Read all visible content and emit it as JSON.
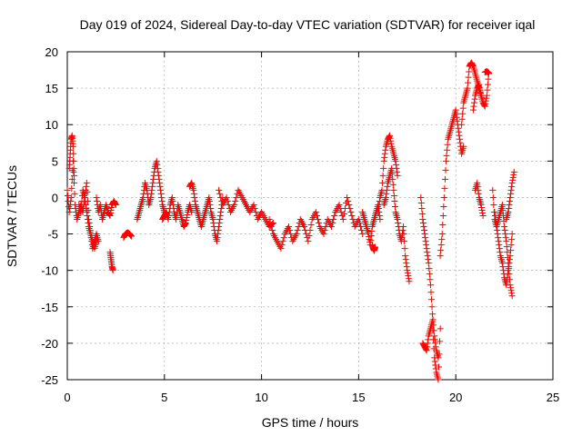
{
  "chart_data": {
    "type": "scatter",
    "title": "Day 019 of 2024, Sidereal Day-to-day VTEC variation (SDTVAR) for receiver iqal",
    "xlabel": "GPS time / hours",
    "ylabel": "SDTVAR / TECUs",
    "xlim": [
      0,
      25
    ],
    "ylim": [
      -25,
      20
    ],
    "xticks": [
      0,
      5,
      10,
      15,
      20,
      25
    ],
    "yticks": [
      -25,
      -20,
      -15,
      -10,
      -5,
      0,
      5,
      10,
      15,
      20
    ],
    "grid": true,
    "marker": "+",
    "color": "#ff0000",
    "series": [
      {
        "name": "SDTVAR",
        "segments": [
          {
            "x": [
              0.0,
              0.1,
              0.2,
              0.3,
              0.4,
              0.5,
              0.6,
              0.7,
              0.8,
              0.9,
              1.0,
              1.1,
              1.2,
              1.3,
              1.4,
              1.5
            ],
            "y": [
              1,
              -2,
              0,
              5,
              -1,
              -3,
              -2,
              -1,
              -2,
              0,
              -2,
              -4,
              -5,
              -6,
              -7,
              -6
            ]
          },
          {
            "x": [
              0.1,
              0.15,
              0.2,
              0.25,
              0.3,
              0.35
            ],
            "y": [
              4,
              6,
              8,
              8.5,
              7,
              3
            ]
          },
          {
            "x": [
              0.6,
              0.7,
              0.8,
              0.9,
              1.0,
              1.1,
              1.2,
              1.3,
              1.4,
              1.5,
              1.6
            ],
            "y": [
              -1,
              -2,
              1,
              0,
              2,
              -3,
              -5,
              -7,
              -6,
              -5,
              -6
            ]
          },
          {
            "x": [
              1.5,
              1.6,
              1.7,
              1.8,
              1.9,
              2.0,
              2.1,
              2.2,
              2.3,
              2.4,
              2.5
            ],
            "y": [
              0,
              -2,
              -1,
              -3,
              -2,
              -1,
              -2,
              -2.5,
              -1,
              -0.5,
              -1
            ]
          },
          {
            "x": [
              2.2,
              2.25,
              2.3,
              2.35
            ],
            "y": [
              -7.5,
              -8.5,
              -9.5,
              -10
            ]
          },
          {
            "x": [
              2.9,
              3.0,
              3.1,
              3.2,
              3.3
            ],
            "y": [
              -5.5,
              -5,
              -4.8,
              -5,
              -5.3
            ]
          },
          {
            "x": [
              3.6,
              3.7,
              3.8,
              3.9,
              4.0,
              4.1,
              4.2,
              4.3,
              4.4,
              4.5,
              4.6,
              4.7,
              4.8,
              4.9,
              5.0
            ],
            "y": [
              -3,
              -2,
              -1,
              0,
              2,
              1,
              -1,
              0,
              2,
              4,
              5,
              3,
              1,
              -1,
              -2
            ]
          },
          {
            "x": [
              4.9,
              5.0,
              5.1,
              5.2,
              5.3,
              5.4,
              5.5,
              5.6,
              5.7,
              5.8,
              5.9,
              6.0,
              6.1,
              6.2,
              6.3,
              6.4
            ],
            "y": [
              -3,
              -2.5,
              -2,
              -3,
              -1,
              0,
              -2,
              -3,
              -1,
              -2,
              -3,
              -4,
              -3.5,
              -2,
              -1,
              -2
            ]
          },
          {
            "x": [
              6.3,
              6.4,
              6.5,
              6.6,
              6.7,
              6.8,
              6.9,
              7.0,
              7.1,
              7.2,
              7.3,
              7.4,
              7.5,
              7.6,
              7.7,
              7.8,
              7.9,
              8.0
            ],
            "y": [
              1.5,
              2,
              1,
              -1,
              -2,
              -3,
              -4,
              -3,
              -2,
              -1,
              0,
              -2,
              -3,
              -5,
              -6,
              -4,
              -2,
              0
            ]
          },
          {
            "x": [
              7.8,
              8.0,
              8.2,
              8.4,
              8.6,
              8.8,
              9.0,
              9.2,
              9.4,
              9.6,
              9.8,
              10.0,
              10.2,
              10.4,
              10.6
            ],
            "y": [
              1,
              -1,
              0,
              -2,
              -1,
              1,
              0,
              -1,
              -2,
              -1,
              -3,
              -2,
              -3,
              -4,
              -3.5
            ]
          },
          {
            "x": [
              10.4,
              10.6,
              10.8,
              11.0,
              11.2,
              11.4,
              11.6,
              11.8,
              12.0,
              12.2,
              12.4,
              12.6,
              12.8,
              13.0,
              13.2,
              13.4,
              13.6,
              13.8,
              14.0,
              14.2,
              14.4,
              14.6,
              14.8,
              15.0,
              15.2
            ],
            "y": [
              -3,
              -5,
              -6,
              -7,
              -5,
              -4,
              -6,
              -5,
              -3,
              -4,
              -6,
              -3,
              -2,
              -4,
              -5,
              -3,
              -4,
              -2,
              -1,
              -3,
              0,
              -2,
              -4,
              -3,
              -5
            ]
          },
          {
            "x": [
              15.2,
              15.3,
              15.4,
              15.5,
              15.6,
              15.7,
              15.8,
              15.9,
              16.0,
              16.1
            ],
            "y": [
              -2,
              -3,
              -4,
              -5,
              -6.5,
              -4,
              -3,
              -2,
              -1,
              -3
            ]
          },
          {
            "x": [
              15.7,
              15.75,
              15.8,
              15.85
            ],
            "y": [
              -6.5,
              -7,
              -7.3,
              -6.8
            ]
          },
          {
            "x": [
              16.0,
              16.1,
              16.2,
              16.3,
              16.4,
              16.5,
              16.6,
              16.7,
              16.8,
              16.9,
              17.0
            ],
            "y": [
              -2,
              0,
              1,
              5,
              7,
              8,
              8.5,
              7,
              6,
              5,
              3
            ]
          },
          {
            "x": [
              16.3,
              16.4,
              16.5,
              16.6,
              16.7,
              16.8,
              16.9,
              17.0,
              17.1,
              17.2,
              17.3,
              17.4,
              17.5,
              17.6
            ],
            "y": [
              -1,
              0,
              2,
              3,
              4,
              1,
              -2,
              -3,
              -5,
              -6,
              -4,
              -8,
              -10,
              -11.5
            ]
          },
          {
            "x": [
              18.2,
              18.3,
              18.4,
              18.5,
              18.6,
              18.7,
              18.8,
              18.9,
              19.0,
              19.1
            ],
            "y": [
              0,
              -3,
              -5,
              -7,
              -9,
              -12,
              -16,
              -19,
              -21,
              -22
            ]
          },
          {
            "x": [
              18.3,
              18.4,
              18.5,
              18.6,
              18.7,
              18.8,
              18.9,
              19.0,
              19.1,
              19.2
            ],
            "y": [
              -20,
              -20.5,
              -21,
              -19,
              -18,
              -17,
              -22,
              -24,
              -25,
              -18
            ]
          },
          {
            "x": [
              19.2,
              19.3,
              19.4,
              19.5,
              19.6,
              19.7,
              19.8,
              19.9,
              20.0,
              20.1,
              20.2,
              20.3,
              20.4
            ],
            "y": [
              -8,
              -5,
              0,
              5,
              8,
              9,
              10,
              11,
              12,
              10,
              8,
              6,
              7
            ]
          },
          {
            "x": [
              20.3,
              20.4,
              20.5,
              20.6,
              20.7,
              20.8,
              20.9,
              21.0,
              21.1,
              21.2,
              21.3,
              21.4,
              21.5,
              21.6,
              21.7
            ],
            "y": [
              10,
              13,
              14,
              15,
              18,
              18.5,
              18,
              17,
              16,
              15,
              14,
              13,
              12.5,
              14,
              17
            ]
          },
          {
            "x": [
              20.9,
              21.0,
              21.1,
              21.2,
              21.3
            ],
            "y": [
              12,
              14,
              15,
              15.5,
              14
            ]
          },
          {
            "x": [
              21.5,
              21.6,
              21.7
            ],
            "y": [
              17.2,
              17.3,
              17.1
            ]
          },
          {
            "x": [
              21.0,
              21.1,
              21.2,
              21.3,
              21.4
            ],
            "y": [
              1,
              2,
              0,
              -1,
              -2.5
            ]
          },
          {
            "x": [
              21.9,
              22.0,
              22.1,
              22.2,
              22.3,
              22.4,
              22.5,
              22.6,
              22.7,
              22.8,
              22.9
            ],
            "y": [
              1,
              -3,
              -4,
              -3,
              -2,
              -1,
              -4,
              -6,
              -9,
              -12,
              -13.5
            ]
          },
          {
            "x": [
              22.0,
              22.1,
              22.2,
              22.3,
              22.4,
              22.5,
              22.6,
              22.7,
              22.8,
              22.9
            ],
            "y": [
              -2,
              -4,
              -6,
              -8,
              -9,
              -11,
              -12,
              -10,
              -8,
              -5
            ]
          },
          {
            "x": [
              22.6,
              22.7,
              22.8,
              22.9,
              23.0
            ],
            "y": [
              -3,
              -2,
              0,
              2,
              3.5
            ]
          }
        ]
      }
    ]
  }
}
